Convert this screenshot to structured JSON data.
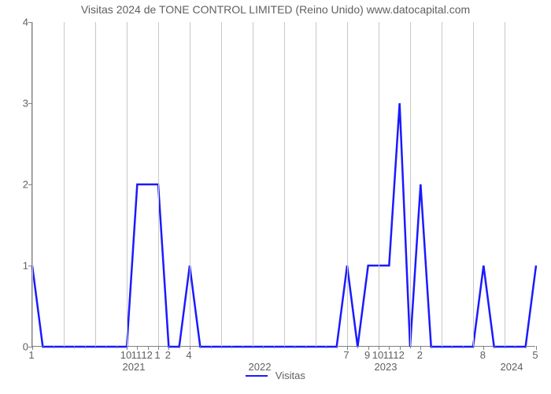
{
  "title": {
    "text": "Visitas 2024 de TONE CONTROL LIMITED (Reino Unido) www.datocapital.com",
    "fontsize": 14,
    "color": "#606060"
  },
  "chart": {
    "type": "line",
    "background_color": "#ffffff",
    "grid_color": "#c8c8c8",
    "axis_color": "#808080",
    "line_color": "#1a1aff",
    "line_width": 2.5,
    "ylim": [
      0,
      4
    ],
    "yticks": [
      0,
      1,
      2,
      3,
      4
    ],
    "ytick_labels": [
      "0",
      "1",
      "2",
      "3",
      "4"
    ],
    "tick_fontsize": 13,
    "label_color": "#606060",
    "x_range_months": 48,
    "x_month_ticks": [
      {
        "m": 0,
        "label": "1",
        "major": true
      },
      {
        "m": 9,
        "label": "10",
        "major": true
      },
      {
        "m": 10,
        "label": "11",
        "major": true
      },
      {
        "m": 11,
        "label": "12",
        "major": true
      },
      {
        "m": 12,
        "label": "1",
        "major": true
      },
      {
        "m": 13,
        "label": "2",
        "major": true
      },
      {
        "m": 15,
        "label": "4",
        "major": true
      },
      {
        "m": 30,
        "label": "7",
        "major": true
      },
      {
        "m": 32,
        "label": "9",
        "major": true
      },
      {
        "m": 33,
        "label": "10",
        "major": true
      },
      {
        "m": 34,
        "label": "11",
        "major": true
      },
      {
        "m": 35,
        "label": "12",
        "major": true
      },
      {
        "m": 37,
        "label": "2",
        "major": true
      },
      {
        "m": 43,
        "label": "8",
        "major": true
      },
      {
        "m": 48,
        "label": "5",
        "major": true
      }
    ],
    "x_year_labels": [
      {
        "m": 12,
        "label": "2021"
      },
      {
        "m": 24,
        "label": "2022"
      },
      {
        "m": 36,
        "label": "2023"
      },
      {
        "m": 48,
        "label": "2024"
      }
    ],
    "grid_v_months": [
      0,
      3,
      6,
      9,
      12,
      15,
      18,
      21,
      24,
      27,
      30,
      33,
      36,
      39,
      42,
      45
    ],
    "data": [
      {
        "m": 0,
        "v": 1
      },
      {
        "m": 1,
        "v": 0
      },
      {
        "m": 2,
        "v": 0
      },
      {
        "m": 3,
        "v": 0
      },
      {
        "m": 4,
        "v": 0
      },
      {
        "m": 5,
        "v": 0
      },
      {
        "m": 6,
        "v": 0
      },
      {
        "m": 7,
        "v": 0
      },
      {
        "m": 8,
        "v": 0
      },
      {
        "m": 9,
        "v": 0
      },
      {
        "m": 10,
        "v": 2
      },
      {
        "m": 11,
        "v": 2
      },
      {
        "m": 12,
        "v": 2
      },
      {
        "m": 13,
        "v": 0
      },
      {
        "m": 14,
        "v": 0
      },
      {
        "m": 15,
        "v": 1
      },
      {
        "m": 16,
        "v": 0
      },
      {
        "m": 17,
        "v": 0
      },
      {
        "m": 18,
        "v": 0
      },
      {
        "m": 19,
        "v": 0
      },
      {
        "m": 20,
        "v": 0
      },
      {
        "m": 21,
        "v": 0
      },
      {
        "m": 22,
        "v": 0
      },
      {
        "m": 23,
        "v": 0
      },
      {
        "m": 24,
        "v": 0
      },
      {
        "m": 25,
        "v": 0
      },
      {
        "m": 26,
        "v": 0
      },
      {
        "m": 27,
        "v": 0
      },
      {
        "m": 28,
        "v": 0
      },
      {
        "m": 29,
        "v": 0
      },
      {
        "m": 30,
        "v": 1
      },
      {
        "m": 31,
        "v": 0
      },
      {
        "m": 32,
        "v": 1
      },
      {
        "m": 33,
        "v": 1
      },
      {
        "m": 34,
        "v": 1
      },
      {
        "m": 35,
        "v": 3
      },
      {
        "m": 36,
        "v": 0
      },
      {
        "m": 37,
        "v": 2
      },
      {
        "m": 38,
        "v": 0
      },
      {
        "m": 39,
        "v": 0
      },
      {
        "m": 40,
        "v": 0
      },
      {
        "m": 41,
        "v": 0
      },
      {
        "m": 42,
        "v": 0
      },
      {
        "m": 43,
        "v": 1
      },
      {
        "m": 44,
        "v": 0
      },
      {
        "m": 45,
        "v": 0
      },
      {
        "m": 46,
        "v": 0
      },
      {
        "m": 47,
        "v": 0
      },
      {
        "m": 48,
        "v": 1
      }
    ]
  },
  "legend": {
    "label": "Visitas",
    "swatch_color": "#1a1aff",
    "swatch_width": 28,
    "fontsize": 13,
    "color": "#606060"
  }
}
